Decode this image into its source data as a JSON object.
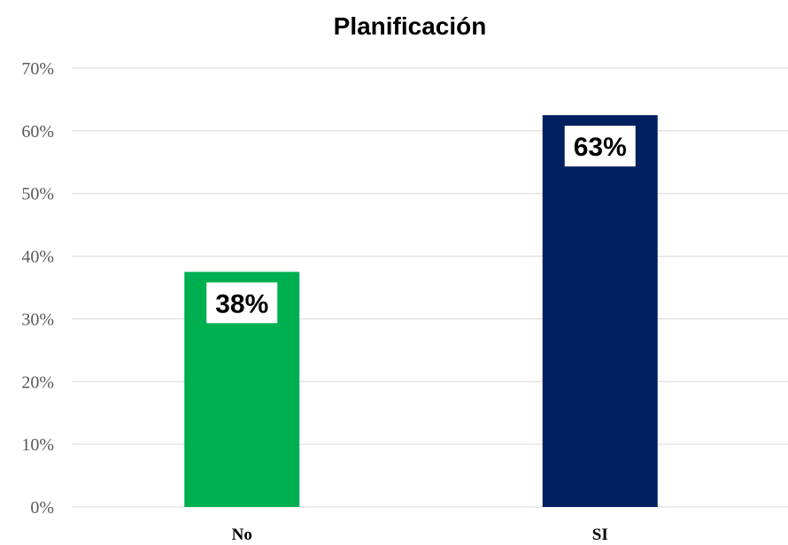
{
  "chart_data": {
    "type": "bar",
    "title": "Planificación",
    "categories": [
      "No",
      "SI"
    ],
    "values": [
      37.5,
      62.5
    ],
    "data_labels": [
      "38%",
      "63%"
    ],
    "colors": [
      "#00b050",
      "#002060"
    ],
    "ylim": [
      0,
      70
    ],
    "yticks": [
      0,
      10,
      20,
      30,
      40,
      50,
      60,
      70
    ],
    "ytick_labels": [
      "0%",
      "10%",
      "20%",
      "30%",
      "40%",
      "50%",
      "60%",
      "70%"
    ],
    "grid": true,
    "legend": "none",
    "gridline_color": "#d9d9d9",
    "data_label_background": "#ffffff"
  }
}
